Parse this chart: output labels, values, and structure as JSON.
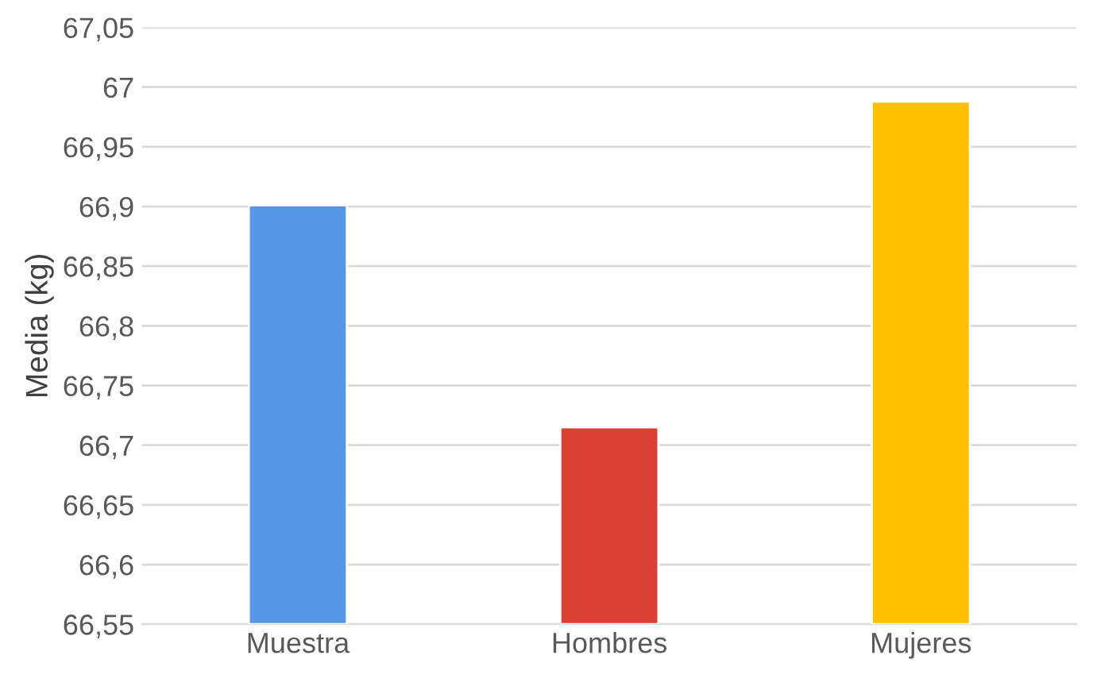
{
  "chart_data": {
    "type": "bar",
    "ylabel": "Media (kg)",
    "categories": [
      "Muestra",
      "Hombres",
      "Mujeres"
    ],
    "values": [
      66.901,
      66.715,
      66.988
    ],
    "colors": [
      "#5597e6",
      "#db4035",
      "#ffc000"
    ],
    "ylim": [
      66.55,
      67.05
    ],
    "yticks": [
      {
        "value": 66.55,
        "label": "66,55"
      },
      {
        "value": 66.6,
        "label": "66,6"
      },
      {
        "value": 66.65,
        "label": "66,65"
      },
      {
        "value": 66.7,
        "label": "66,7"
      },
      {
        "value": 66.75,
        "label": "66,75"
      },
      {
        "value": 66.8,
        "label": "66,8"
      },
      {
        "value": 66.85,
        "label": "66,85"
      },
      {
        "value": 66.9,
        "label": "66,9"
      },
      {
        "value": 66.95,
        "label": "66,95"
      },
      {
        "value": 67.0,
        "label": "67"
      },
      {
        "value": 67.05,
        "label": "67,05"
      }
    ],
    "grid": "y"
  }
}
